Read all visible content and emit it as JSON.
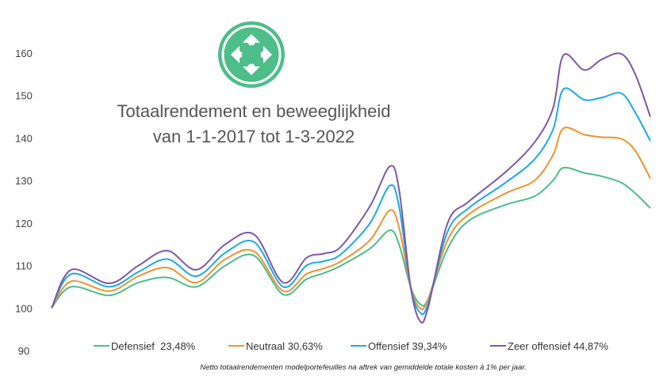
{
  "chart_data": {
    "type": "line",
    "title": [
      "Totaalrendement en beweeglijkheid",
      "van 1-1-2017 tot 1-3-2022"
    ],
    "xlabel": "",
    "ylabel": "",
    "ylim": [
      90,
      160
    ],
    "yticks": [
      90,
      100,
      110,
      120,
      130,
      140,
      150,
      160
    ],
    "grid": false,
    "legend_position": "bottom",
    "x": [
      2017.0,
      2017.17,
      2017.5,
      2017.75,
      2018.0,
      2018.25,
      2018.5,
      2018.75,
      2019.0,
      2019.2,
      2019.35,
      2019.5,
      2019.75,
      2019.92,
      2020.0,
      2020.1,
      2020.18,
      2020.25,
      2020.42,
      2020.6,
      2020.92,
      2021.17,
      2021.33,
      2021.42,
      2021.6,
      2021.75,
      2021.92,
      2022.04,
      2022.17
    ],
    "series": [
      {
        "name": "Defensief  23,48%",
        "color": "#4dbd8a",
        "values": [
          100,
          105,
          103,
          106,
          107.2,
          105,
          110,
          112.3,
          103.2,
          106.8,
          108.2,
          110,
          114,
          118.3,
          115,
          105,
          101,
          102,
          114,
          120.5,
          124.3,
          126.3,
          130,
          133,
          131.8,
          131,
          129.5,
          127,
          123.5
        ]
      },
      {
        "name": "Neutraal 30,63%",
        "color": "#f0922e",
        "values": [
          100,
          106.3,
          104,
          107.5,
          109.5,
          106,
          111.5,
          113.3,
          104,
          108,
          109.3,
          111,
          116,
          123,
          119,
          105,
          100,
          102,
          116,
          122,
          127,
          130,
          136,
          142.3,
          140.8,
          140.2,
          139.8,
          137,
          130.5
        ]
      },
      {
        "name": "Offensief 39,34%",
        "color": "#19aae6",
        "values": [
          100,
          108,
          105,
          108.5,
          111.5,
          107.5,
          113,
          115.5,
          105,
          110,
          111,
          112.7,
          120,
          128.8,
          124,
          105,
          99,
          101,
          118,
          123.5,
          129.5,
          135,
          142,
          151.5,
          149,
          149.5,
          150.5,
          146,
          139.3
        ]
      },
      {
        "name": "Zeer offensief 44,87%",
        "color": "#7e57a4",
        "values": [
          100,
          109,
          105.8,
          110,
          113.5,
          109,
          115,
          117.3,
          106,
          111.8,
          112.8,
          114.5,
          124,
          133.3,
          128,
          105,
          97,
          100,
          120,
          125,
          132,
          139,
          147,
          159.5,
          156,
          158.5,
          159.8,
          155,
          145
        ]
      }
    ],
    "footnote": "Netto totaalrendementen modelportefeuilles na aftrek van gemiddelde totale kosten á 1% per jaar.",
    "logo_color": "#4dbd8a"
  }
}
